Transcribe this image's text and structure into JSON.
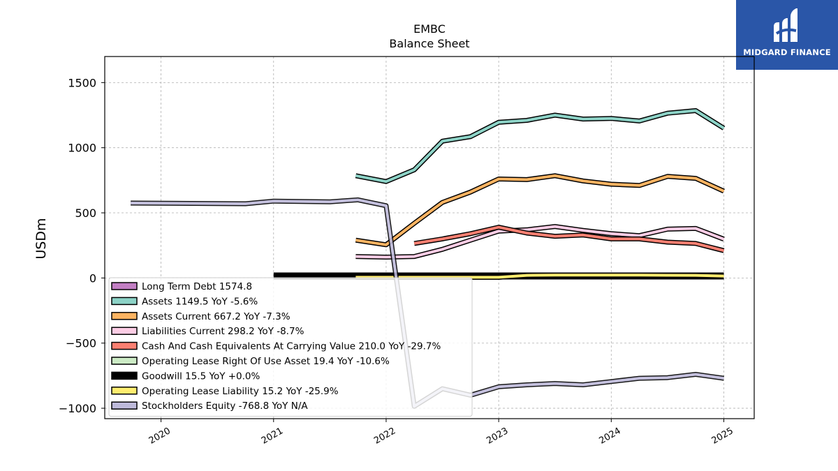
{
  "brand": {
    "name": "MIDGARD FINANCE",
    "bg_color": "#2a56a8"
  },
  "chart_data": {
    "type": "line",
    "title": "EMBC",
    "subtitle": "Balance  Sheet",
    "ylabel": "USDm",
    "xlabel": "",
    "ylim": [
      -1080,
      1700
    ],
    "xlim": [
      2019.5,
      2025.27
    ],
    "yticks": [
      -1000,
      -500,
      0,
      500,
      1000,
      1500
    ],
    "yticklabels": [
      "−1000",
      "−500",
      "0",
      "500",
      "1000",
      "1500"
    ],
    "xticks": [
      2020,
      2021,
      2022,
      2023,
      2024,
      2025
    ],
    "xticklabels": [
      "2020",
      "2021",
      "2022",
      "2023",
      "2024",
      "2025"
    ],
    "grid": true,
    "legend_position": "lower-left",
    "series": [
      {
        "name": "Long Term Debt  1574.8",
        "color": "#c37fc4",
        "x": [],
        "y": []
      },
      {
        "name": "Assets  1149.5 YoY -5.6%",
        "color": "#8dd3c7",
        "x": [
          2021.73,
          2022.0,
          2022.25,
          2022.5,
          2022.75,
          2023.0,
          2023.25,
          2023.5,
          2023.75,
          2024.0,
          2024.25,
          2024.5,
          2024.75,
          2025.0
        ],
        "y": [
          785,
          740,
          830,
          1050,
          1085,
          1195,
          1210,
          1250,
          1220,
          1225,
          1205,
          1265,
          1285,
          1150
        ]
      },
      {
        "name": "Assets Current  667.2 YoY -7.3%",
        "color": "#fdb462",
        "x": [
          2021.73,
          2022.0,
          2022.25,
          2022.5,
          2022.75,
          2023.0,
          2023.25,
          2023.5,
          2023.75,
          2024.0,
          2024.25,
          2024.5,
          2024.75,
          2025.0
        ],
        "y": [
          290,
          255,
          420,
          580,
          660,
          760,
          755,
          785,
          745,
          720,
          710,
          780,
          765,
          667
        ]
      },
      {
        "name": "Liabilities Current  298.2 YoY -8.7%",
        "color": "#fccde5",
        "x": [
          2021.73,
          2022.0,
          2022.25,
          2022.5,
          2022.75,
          2023.0,
          2023.25,
          2023.5,
          2023.75,
          2024.0,
          2024.25,
          2024.5,
          2024.75,
          2025.0
        ],
        "y": [
          165,
          160,
          165,
          220,
          290,
          360,
          370,
          395,
          365,
          340,
          325,
          375,
          380,
          298
        ]
      },
      {
        "name": "Cash And Cash Equivalents At Carrying Value  210.0 YoY -29.7%",
        "color": "#fb8072",
        "x": [
          2022.25,
          2022.5,
          2022.75,
          2023.0,
          2023.25,
          2023.5,
          2023.75,
          2024.0,
          2024.25,
          2024.5,
          2024.75,
          2025.0
        ],
        "y": [
          265,
          300,
          340,
          390,
          345,
          320,
          330,
          300,
          300,
          275,
          265,
          210
        ]
      },
      {
        "name": "Operating Lease Right Of Use Asset  19.4 YoY -10.6%",
        "color": "#ccebc5",
        "x": [
          2021.73,
          2022.0,
          2022.25,
          2022.5,
          2022.75,
          2023.0,
          2023.25,
          2023.5,
          2023.75,
          2024.0,
          2024.25,
          2024.5,
          2024.75,
          2025.0
        ],
        "y": [
          5,
          5,
          5,
          5,
          5,
          5,
          20,
          22,
          22,
          22,
          22,
          21,
          21,
          19
        ]
      },
      {
        "name": "Goodwill  15.5 YoY +0.0%",
        "color": "#000000",
        "x": [
          2021.0,
          2021.25,
          2021.5,
          2021.75,
          2022.0,
          2022.25,
          2022.5,
          2022.75,
          2023.0,
          2023.25,
          2023.5,
          2023.75,
          2024.0,
          2024.25,
          2024.5,
          2024.75,
          2025.0
        ],
        "y": [
          15.5,
          15.5,
          15.5,
          15.5,
          15.5,
          15.5,
          15.5,
          15.5,
          15.5,
          15.5,
          15.5,
          15.5,
          15.5,
          15.5,
          15.5,
          15.5,
          15.5
        ]
      },
      {
        "name": "Operating Lease Liability  15.2 YoY -25.9%",
        "color": "#ffed6f",
        "x": [
          2021.73,
          2022.0,
          2022.25,
          2022.5,
          2022.75,
          2023.0,
          2023.25,
          2023.5,
          2023.75,
          2024.0,
          2024.25,
          2024.5,
          2024.75,
          2025.0
        ],
        "y": [
          5,
          5,
          5,
          5,
          5,
          5,
          20,
          22,
          22,
          22,
          22,
          21,
          20,
          15
        ]
      },
      {
        "name": "Stockholders Equity  -768.8 YoY N/A",
        "color": "#bebada",
        "x": [
          2019.73,
          2020.75,
          2021.0,
          2021.5,
          2021.75,
          2022.0,
          2022.25,
          2022.5,
          2022.75,
          2023.0,
          2023.25,
          2023.5,
          2023.75,
          2024.0,
          2024.25,
          2024.5,
          2024.75,
          2025.0
        ],
        "y": [
          575,
          570,
          590,
          585,
          600,
          555,
          -985,
          -850,
          -900,
          -835,
          -820,
          -810,
          -820,
          -795,
          -770,
          -765,
          -740,
          -770
        ]
      }
    ]
  }
}
